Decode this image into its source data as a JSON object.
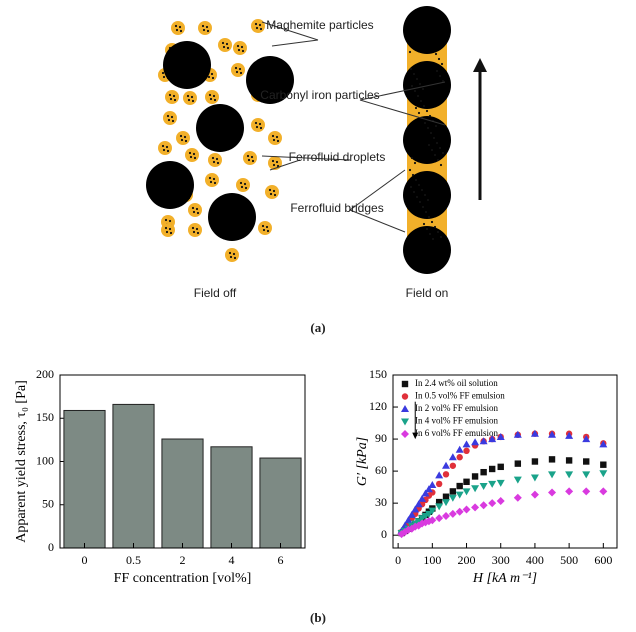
{
  "diagram": {
    "maghemite": "Maghemite particles",
    "carbonyl": "Carbonyl iron particles",
    "droplets": "Ferrofluid droplets",
    "bridges": "Ferrofluid bridges",
    "field_off": "Field off",
    "field_on": "Field on",
    "label_a": "(a)",
    "label_b": "(b)"
  },
  "chart_data": [
    {
      "type": "bar",
      "categories": [
        "0",
        "0.5",
        "2",
        "4",
        "6"
      ],
      "values": [
        159,
        166,
        126,
        117,
        104
      ],
      "color": "#7d8a84",
      "ylim": [
        0,
        200
      ],
      "yticks": [
        0,
        50,
        100,
        150,
        200
      ],
      "ylabel": "Apparent yield stress, τ₀ [Pa]",
      "xlabel": "FF  concentration [vol%]"
    },
    {
      "type": "scatter",
      "xlabel": "H [kA m⁻¹]",
      "ylabel": "G′ [kPa]",
      "xlim": [
        -15,
        640
      ],
      "ylim": [
        -12,
        150
      ],
      "xticks": [
        0,
        100,
        200,
        300,
        400,
        500,
        600
      ],
      "yticks": [
        0,
        30,
        60,
        90,
        120,
        150
      ],
      "legend": "upper-left",
      "x": [
        10,
        20,
        30,
        40,
        50,
        60,
        70,
        80,
        90,
        100,
        120,
        140,
        160,
        180,
        200,
        225,
        250,
        275,
        300,
        350,
        400,
        450,
        500,
        550,
        600
      ],
      "series": [
        {
          "name": "In 2.4 wt% oil solution",
          "color": "#111111",
          "marker": "square",
          "values": [
            2,
            4,
            6,
            8,
            10,
            13,
            16,
            19,
            22,
            25,
            31,
            36,
            41,
            46,
            50,
            55,
            59,
            62,
            64,
            67,
            69,
            71,
            70,
            69,
            66
          ]
        },
        {
          "name": "In 0.5 vol% FF emulsion",
          "color": "#e0303a",
          "marker": "circle",
          "values": [
            3,
            7,
            11,
            16,
            20,
            25,
            29,
            33,
            37,
            40,
            48,
            57,
            65,
            73,
            79,
            84,
            88,
            90,
            92,
            94,
            95,
            95,
            95,
            92,
            86
          ]
        },
        {
          "name": "In 2 vol% FF emulsion",
          "color": "#3a3adf",
          "marker": "triangle-up",
          "values": [
            4,
            9,
            14,
            19,
            24,
            29,
            34,
            39,
            43,
            47,
            56,
            65,
            73,
            80,
            85,
            87,
            88,
            90,
            92,
            94,
            95,
            94,
            93,
            90,
            85
          ]
        },
        {
          "name": "In 4 vol% FF emulsion",
          "color": "#1aa38a",
          "marker": "triangle-down",
          "values": [
            2,
            4,
            6,
            9,
            11,
            13,
            16,
            18,
            20,
            23,
            27,
            31,
            35,
            38,
            41,
            44,
            46,
            48,
            49,
            52,
            54,
            57,
            57,
            57,
            58
          ]
        },
        {
          "name": "In 6 vol% FF emulsion",
          "color": "#d93adf",
          "marker": "diamond",
          "values": [
            1,
            3,
            5,
            6,
            8,
            9,
            11,
            12,
            13,
            14,
            16,
            18,
            20,
            22,
            24,
            26,
            28,
            30,
            32,
            35,
            38,
            40,
            41,
            41,
            41
          ]
        }
      ]
    }
  ]
}
